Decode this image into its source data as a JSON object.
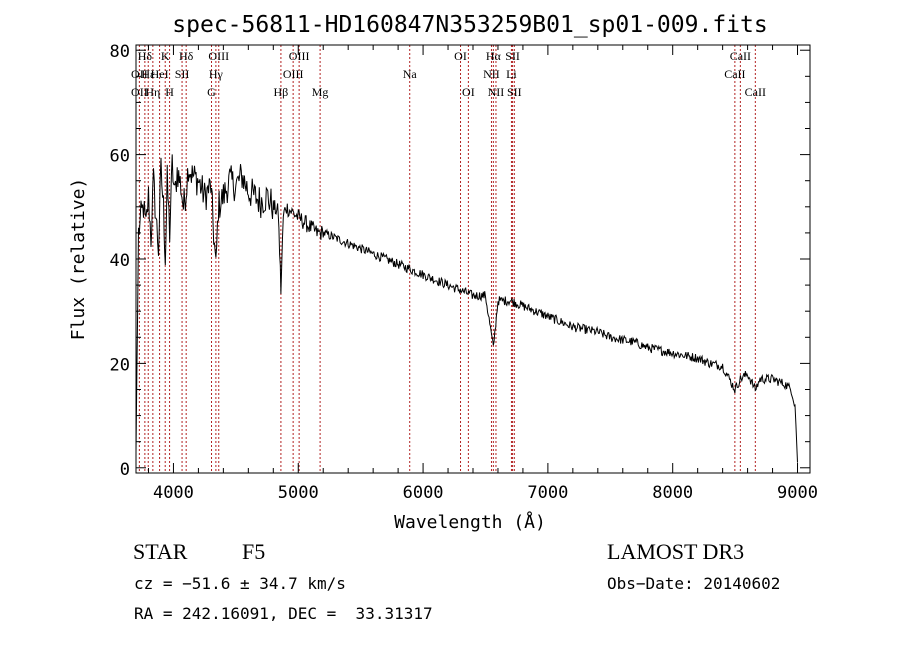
{
  "chart_data": {
    "type": "line",
    "title": "spec-56811-HD160847N353259B01_sp01-009.fits",
    "xlabel": "Wavelength (Å)",
    "ylabel": "Flux (relative)",
    "xlim": [
      3700,
      9100
    ],
    "ylim": [
      -1,
      81
    ],
    "x_ticks": [
      4000,
      5000,
      6000,
      7000,
      8000,
      9000
    ],
    "y_ticks": [
      0,
      20,
      40,
      60,
      80
    ],
    "series": [
      {
        "name": "flux",
        "x": [
          3700,
          3720,
          3740,
          3760,
          3780,
          3800,
          3820,
          3840,
          3860,
          3880,
          3900,
          3920,
          3935,
          3950,
          3970,
          3990,
          4010,
          4030,
          4060,
          4080,
          4101,
          4120,
          4150,
          4200,
          4250,
          4300,
          4340,
          4360,
          4400,
          4450,
          4500,
          4550,
          4600,
          4650,
          4700,
          4750,
          4800,
          4840,
          4861,
          4880,
          4900,
          4950,
          5000,
          5050,
          5100,
          5150,
          5200,
          5300,
          5400,
          5500,
          5600,
          5700,
          5800,
          5900,
          6000,
          6100,
          6200,
          6300,
          6400,
          6500,
          6563,
          6600,
          6700,
          6800,
          6900,
          7000,
          7100,
          7200,
          7300,
          7400,
          7500,
          7600,
          7700,
          7800,
          7900,
          8000,
          8100,
          8200,
          8300,
          8400,
          8498,
          8542,
          8600,
          8662,
          8700,
          8800,
          8850,
          8900,
          8950,
          8980,
          9000
        ],
        "y": [
          3,
          45,
          48,
          50,
          46,
          52,
          44,
          55,
          48,
          42,
          57,
          50,
          40,
          55,
          45,
          58,
          52,
          57,
          54,
          50,
          53,
          58,
          56,
          55,
          52,
          54,
          38,
          50,
          52,
          55,
          54,
          56,
          53,
          52,
          51,
          52,
          50,
          49,
          34,
          48,
          50,
          49,
          48,
          47,
          46,
          45,
          45,
          44,
          43,
          42,
          41,
          40,
          39,
          38,
          37,
          36,
          35,
          34,
          33,
          33,
          23,
          32,
          32,
          31,
          30,
          29,
          28,
          27,
          26.5,
          26,
          25,
          24.5,
          24,
          23,
          22.5,
          22,
          21.5,
          21,
          20,
          19.5,
          15,
          17,
          18,
          15,
          17,
          17,
          16.5,
          16,
          15,
          12,
          1
        ]
      }
    ],
    "line_labels": [
      {
        "name": "Hδ",
        "x": 3771,
        "row": 0
      },
      {
        "name": "OII",
        "x": 3727,
        "row": 1
      },
      {
        "name": "OII",
        "x": 3727,
        "row": 2
      },
      {
        "name": "Hε",
        "x": 3798,
        "row": 1
      },
      {
        "name": "Hη",
        "x": 3835,
        "row": 2
      },
      {
        "name": "K",
        "x": 3934,
        "row": 0
      },
      {
        "name": "H",
        "x": 3969,
        "row": 2
      },
      {
        "name": "HeI",
        "x": 3889,
        "row": 1
      },
      {
        "name": "SII",
        "x": 4069,
        "row": 1
      },
      {
        "name": "Hδ",
        "x": 4102,
        "row": 0
      },
      {
        "name": "OIII",
        "x": 4363,
        "row": 0
      },
      {
        "name": "Hγ",
        "x": 4340,
        "row": 1
      },
      {
        "name": "G",
        "x": 4305,
        "row": 2
      },
      {
        "name": "Hβ",
        "x": 4861,
        "row": 2
      },
      {
        "name": "OIII",
        "x": 5007,
        "row": 0
      },
      {
        "name": "OIII",
        "x": 4959,
        "row": 1
      },
      {
        "name": "Mg",
        "x": 5175,
        "row": 2
      },
      {
        "name": "Na",
        "x": 5893,
        "row": 1
      },
      {
        "name": "OI",
        "x": 6300,
        "row": 0
      },
      {
        "name": "OI",
        "x": 6363,
        "row": 2
      },
      {
        "name": "Hα",
        "x": 6563,
        "row": 0
      },
      {
        "name": "SII",
        "x": 6717,
        "row": 0
      },
      {
        "name": "NII",
        "x": 6548,
        "row": 1
      },
      {
        "name": "Li",
        "x": 6708,
        "row": 1
      },
      {
        "name": "NII",
        "x": 6584,
        "row": 2
      },
      {
        "name": "SII",
        "x": 6731,
        "row": 2
      },
      {
        "name": "CaII",
        "x": 8542,
        "row": 0
      },
      {
        "name": "CaII",
        "x": 8498,
        "row": 1
      },
      {
        "name": "CaII",
        "x": 8662,
        "row": 2
      }
    ],
    "line_color": "#b22222"
  },
  "footer": {
    "object_class": "STAR",
    "subclass": "F5",
    "redshift": "cz = −51.6 ± 34.7 km/s",
    "coords": "RA = 242.16091, DEC =  33.31317",
    "survey": "LAMOST DR3",
    "obs_date": "Obs−Date: 20140602"
  }
}
